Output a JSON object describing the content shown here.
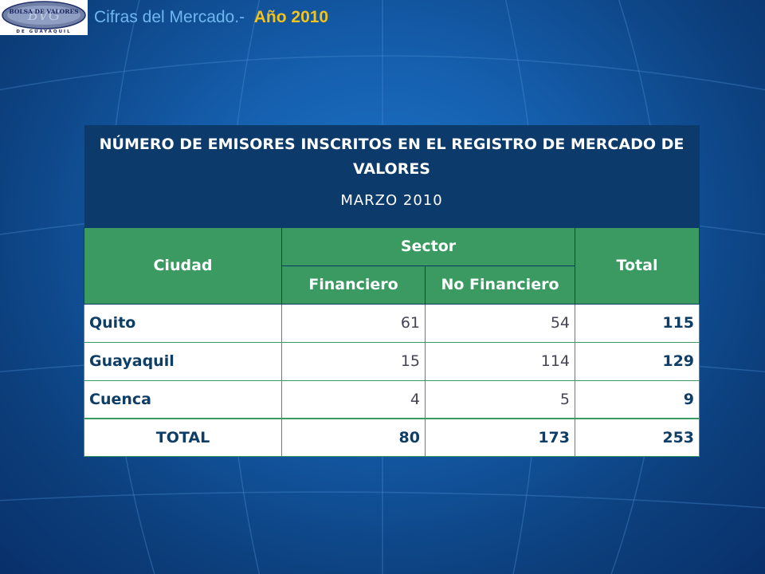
{
  "logo": {
    "line1": "BOLSA DE VALORES",
    "line2": "DE GUAYAQUIL",
    "monogram": "BVG"
  },
  "slide_title": {
    "text": "Cifras del Mercado.-",
    "year": "Año 2010"
  },
  "table": {
    "title": "NÚMERO DE EMISORES INSCRITOS EN EL REGISTRO DE MERCADO DE VALORES",
    "subtitle": "MARZO   2010",
    "headers": {
      "city": "Ciudad",
      "sector": "Sector",
      "financial": "Financiero",
      "non_financial": "No  Financiero",
      "total": "Total"
    },
    "rows": [
      {
        "city": "Quito",
        "financial": "61",
        "non_financial": "54",
        "total": "115"
      },
      {
        "city": "Guayaquil",
        "financial": "15",
        "non_financial": "114",
        "total": "129"
      },
      {
        "city": "Cuenca",
        "financial": "4",
        "non_financial": "5",
        "total": "9"
      }
    ],
    "totals": {
      "label": "TOTAL",
      "financial": "80",
      "non_financial": "173",
      "total": "253"
    }
  },
  "colors": {
    "background": "#155fae",
    "title_bar": "#0b3a6b",
    "header_green": "#3a9a62",
    "title_text": "#6fb7f0",
    "year_text": "#f3c21b"
  }
}
